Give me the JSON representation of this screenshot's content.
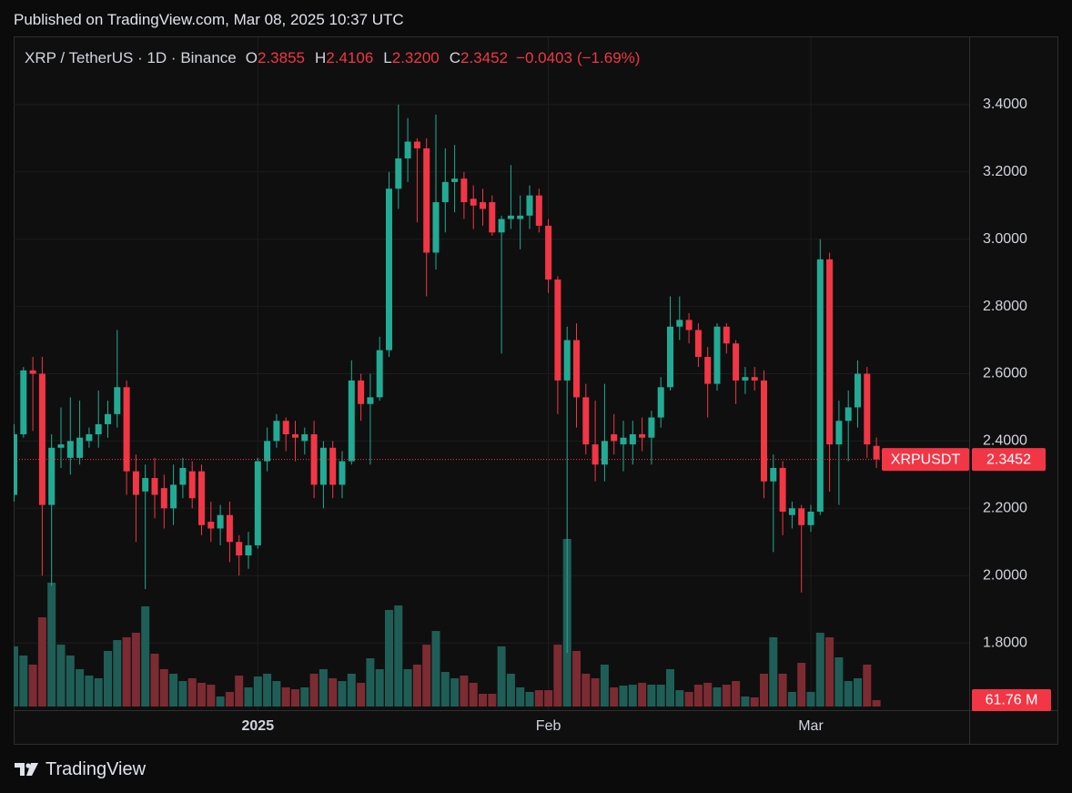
{
  "header": {
    "published": "Published on TradingView.com, Mar 08, 2025 10:37 UTC"
  },
  "footer": {
    "brand": "TradingView"
  },
  "chart_data": {
    "type": "candlestick",
    "title": "XRP / TetherUS · 1D · Binance",
    "symbol": "XRPUSDT",
    "legend_keys": {
      "open": "O",
      "high": "H",
      "low": "L",
      "close": "C"
    },
    "legend_low": {
      "value": 2.32,
      "label": "2.3200"
    },
    "change": {
      "value": -0.0403,
      "label": "−0.0403"
    },
    "change_pct": {
      "value": -1.69,
      "label": "(−1.69%)"
    },
    "volume_tag": {
      "value": 61.76,
      "label": "61.76 M"
    },
    "up_color": "#22ab94",
    "down_color": "#f23645",
    "volume_up_color": "#1f5e57",
    "volume_down_color": "#7c2b32",
    "grid": true,
    "categories": [
      null,
      null,
      null,
      null,
      null,
      null,
      null,
      null,
      null,
      null,
      null,
      null,
      null,
      null,
      null,
      null,
      null,
      null,
      null,
      null,
      null,
      null,
      null,
      null,
      null,
      null,
      "2025",
      null,
      null,
      null,
      null,
      null,
      null,
      null,
      null,
      null,
      null,
      null,
      null,
      null,
      null,
      null,
      null,
      null,
      null,
      null,
      null,
      null,
      null,
      null,
      null,
      null,
      null,
      null,
      null,
      null,
      null,
      "Feb",
      null,
      null,
      null,
      null,
      null,
      null,
      null,
      null,
      null,
      null,
      null,
      null,
      null,
      null,
      null,
      null,
      null,
      null,
      null,
      null,
      null,
      null,
      null,
      null,
      null,
      null,
      null,
      "Mar",
      null,
      null,
      null,
      null,
      null,
      null,
      null
    ],
    "open": [
      2.24,
      2.42,
      2.61,
      2.6,
      2.21,
      2.38,
      2.35,
      2.35,
      2.4,
      2.42,
      2.45,
      2.48,
      2.56,
      2.31,
      2.25,
      2.29,
      2.26,
      2.2,
      2.27,
      2.31,
      2.31,
      2.16,
      2.14,
      2.18,
      2.1,
      2.06,
      2.09,
      2.34,
      2.4,
      2.46,
      2.42,
      2.4,
      2.42,
      2.27,
      2.38,
      2.27,
      2.34,
      2.58,
      2.51,
      2.53,
      2.67,
      3.15,
      3.24,
      3.29,
      3.27,
      2.96,
      3.11,
      3.17,
      3.18,
      3.12,
      3.11,
      3.11,
      3.02,
      3.06,
      3.06,
      3.07,
      3.13,
      3.04,
      2.88,
      2.58,
      2.7,
      2.53,
      2.39,
      2.33,
      2.42,
      2.39,
      2.39,
      2.42,
      2.41,
      2.47,
      2.56,
      2.74,
      2.76,
      2.73,
      2.65,
      2.57,
      2.74,
      2.69,
      2.58,
      2.59,
      2.58,
      2.28,
      2.32,
      2.18,
      2.2,
      2.15,
      2.19,
      2.94,
      2.39,
      2.46,
      2.5,
      2.6,
      2.3855
    ],
    "high": [
      2.45,
      2.62,
      2.65,
      2.65,
      2.42,
      2.5,
      2.53,
      2.52,
      2.44,
      2.55,
      2.52,
      2.73,
      2.58,
      2.36,
      2.33,
      2.35,
      2.3,
      2.33,
      2.35,
      2.34,
      2.33,
      2.22,
      2.21,
      2.22,
      2.12,
      2.13,
      2.35,
      2.44,
      2.48,
      2.47,
      2.46,
      2.44,
      2.46,
      2.4,
      2.4,
      2.37,
      2.64,
      2.6,
      2.6,
      2.71,
      3.2,
      3.4,
      3.36,
      3.3,
      3.3,
      3.37,
      3.27,
      3.28,
      3.2,
      3.16,
      3.15,
      3.13,
      3.07,
      3.22,
      3.13,
      3.16,
      3.15,
      3.06,
      2.89,
      2.74,
      2.75,
      2.57,
      2.52,
      2.57,
      2.48,
      2.46,
      2.46,
      2.47,
      2.49,
      2.59,
      2.83,
      2.83,
      2.78,
      2.75,
      2.68,
      2.75,
      2.75,
      2.7,
      2.62,
      2.62,
      2.61,
      2.36,
      2.34,
      2.22,
      2.21,
      2.21,
      3.0,
      2.96,
      2.52,
      2.55,
      2.64,
      2.62,
      2.4106
    ],
    "low": [
      2.22,
      2.41,
      2.43,
      2.0,
      1.97,
      2.32,
      2.3,
      2.33,
      2.38,
      2.38,
      2.41,
      2.44,
      2.24,
      2.1,
      1.96,
      2.17,
      2.14,
      2.15,
      2.23,
      2.2,
      2.12,
      2.1,
      2.09,
      2.04,
      2.0,
      2.02,
      2.08,
      2.31,
      2.38,
      2.37,
      2.34,
      2.36,
      2.23,
      2.2,
      2.23,
      2.23,
      2.33,
      2.46,
      2.33,
      2.52,
      2.65,
      3.09,
      3.17,
      3.05,
      2.83,
      2.91,
      3.02,
      3.08,
      3.06,
      3.03,
      3.04,
      3.01,
      2.66,
      3.03,
      2.97,
      3.03,
      3.02,
      2.84,
      2.48,
      1.77,
      2.44,
      2.36,
      2.28,
      2.28,
      2.36,
      2.31,
      2.33,
      2.37,
      2.33,
      2.44,
      2.55,
      2.7,
      2.69,
      2.62,
      2.47,
      2.55,
      2.66,
      2.51,
      2.54,
      2.55,
      2.23,
      2.07,
      2.12,
      2.14,
      1.95,
      2.13,
      2.18,
      2.25,
      2.21,
      2.34,
      2.44,
      2.35,
      2.32
    ],
    "close": [
      2.42,
      2.61,
      2.6,
      2.21,
      2.38,
      2.39,
      2.4,
      2.41,
      2.42,
      2.45,
      2.48,
      2.56,
      2.31,
      2.24,
      2.29,
      2.24,
      2.2,
      2.27,
      2.32,
      2.23,
      2.15,
      2.14,
      2.18,
      2.1,
      2.06,
      2.09,
      2.34,
      2.4,
      2.46,
      2.42,
      2.41,
      2.42,
      2.27,
      2.38,
      2.27,
      2.34,
      2.58,
      2.51,
      2.53,
      2.67,
      3.15,
      3.24,
      3.29,
      3.27,
      2.96,
      3.11,
      3.17,
      3.18,
      3.11,
      3.1,
      3.09,
      3.02,
      3.06,
      3.07,
      3.07,
      3.13,
      3.04,
      2.88,
      2.58,
      2.7,
      2.53,
      2.39,
      2.33,
      2.4,
      2.4,
      2.41,
      2.42,
      2.41,
      2.47,
      2.56,
      2.74,
      2.76,
      2.73,
      2.65,
      2.57,
      2.74,
      2.69,
      2.58,
      2.59,
      2.58,
      2.28,
      2.32,
      2.19,
      2.2,
      2.15,
      2.19,
      2.94,
      2.39,
      2.46,
      2.5,
      2.6,
      2.39,
      2.3452
    ],
    "volume": [
      581,
      493,
      405,
      862,
      1197,
      598,
      493,
      361,
      299,
      273,
      537,
      642,
      669,
      713,
      968,
      510,
      361,
      317,
      246,
      273,
      229,
      211,
      97,
      141,
      299,
      185,
      290,
      317,
      246,
      185,
      167,
      185,
      317,
      361,
      273,
      246,
      317,
      229,
      466,
      361,
      933,
      977,
      361,
      405,
      598,
      730,
      334,
      273,
      299,
      229,
      123,
      123,
      581,
      317,
      185,
      141,
      158,
      158,
      598,
      1619,
      537,
      317,
      273,
      405,
      185,
      202,
      211,
      229,
      211,
      211,
      361,
      158,
      141,
      211,
      229,
      185,
      211,
      246,
      97,
      88,
      317,
      669,
      317,
      141,
      422,
      141,
      713,
      669,
      475,
      246,
      273,
      405,
      61.76
    ],
    "ylim": [
      1.6,
      3.6
    ],
    "yticks": [
      {
        "value": 3.4,
        "label": "3.4000"
      },
      {
        "value": 3.2,
        "label": "3.2000"
      },
      {
        "value": 3.0,
        "label": "3.0000"
      },
      {
        "value": 2.8,
        "label": "2.8000"
      },
      {
        "value": 2.6,
        "label": "2.6000"
      },
      {
        "value": 2.4,
        "label": "2.4000"
      },
      {
        "value": 2.2,
        "label": "2.2000"
      },
      {
        "value": 2.0,
        "label": "2.0000"
      },
      {
        "value": 1.8,
        "label": "1.8000"
      }
    ]
  }
}
